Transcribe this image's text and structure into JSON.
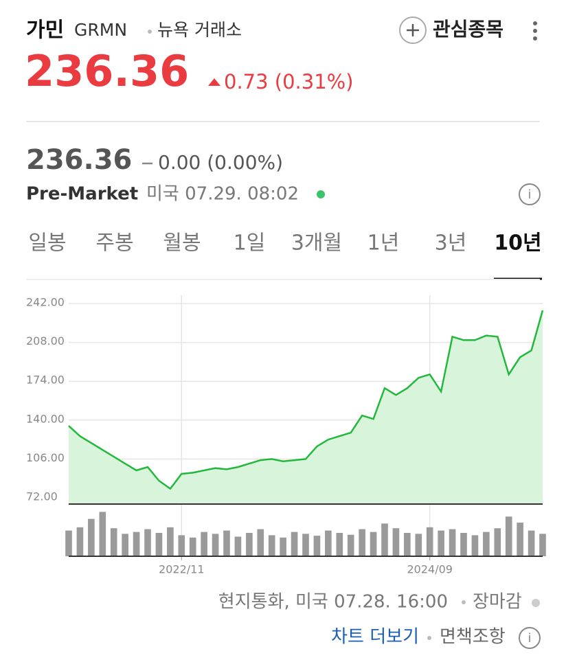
{
  "header": {
    "name": "가민",
    "ticker": "GRMN",
    "exchange": "뉴욕 거래소",
    "watchlist": "관심종목",
    "price": "236.36",
    "change": "0.73 (0.31%)"
  },
  "pre_market": {
    "price": "236.36",
    "change": "0.00 (0.00%)",
    "label": "Pre-Market",
    "time": "미국 07.29. 08:02"
  },
  "tabs": {
    "items": [
      "일봉",
      "주봉",
      "월봉",
      "1일",
      "3개월",
      "1년",
      "3년",
      "10년"
    ],
    "active": 7
  },
  "footer": {
    "note": "현지통화, 미국 07.28. 16:00",
    "status": "장마감",
    "more": "차트 더보기",
    "disclaimer": "면책조항"
  },
  "chart_data": {
    "type": "area",
    "x": [
      "2022/01",
      "2022/02",
      "2022/03",
      "2022/04",
      "2022/05",
      "2022/06",
      "2022/07",
      "2022/08",
      "2022/09",
      "2022/10",
      "2022/11",
      "2022/12",
      "2023/01",
      "2023/02",
      "2023/03",
      "2023/04",
      "2023/05",
      "2023/06",
      "2023/07",
      "2023/08",
      "2023/09",
      "2023/10",
      "2023/11",
      "2023/12",
      "2024/01",
      "2024/02",
      "2024/03",
      "2024/04",
      "2024/05",
      "2024/06",
      "2024/07",
      "2024/08",
      "2024/09",
      "2024/10",
      "2024/11",
      "2024/12",
      "2025/01",
      "2025/02",
      "2025/03",
      "2025/04",
      "2025/05",
      "2025/06",
      "2025/07"
    ],
    "series": [
      {
        "name": "GRMN",
        "color": "#22b83b",
        "fill": "#d8f5db",
        "values": [
          135,
          126,
          120,
          114,
          108,
          102,
          96,
          99,
          87,
          80,
          93,
          94,
          96,
          98,
          97,
          99,
          102,
          105,
          106,
          104,
          105,
          106,
          117,
          123,
          126,
          129,
          144,
          141,
          168,
          162,
          168,
          177,
          180,
          165,
          213,
          210,
          210,
          214,
          213,
          180,
          195,
          201,
          236
        ]
      }
    ],
    "volume": {
      "color": "#9a9a9a",
      "ylim": [
        0,
        100
      ],
      "values": [
        55,
        62,
        80,
        95,
        60,
        48,
        52,
        58,
        50,
        62,
        45,
        40,
        52,
        48,
        55,
        42,
        50,
        58,
        45,
        40,
        52,
        48,
        44,
        55,
        50,
        46,
        58,
        52,
        70,
        60,
        50,
        48,
        62,
        55,
        58,
        50,
        45,
        52,
        60,
        85,
        72,
        55,
        48
      ]
    },
    "ylim": [
      72,
      242
    ],
    "yticks": [
      {
        "value": 242,
        "label": "242.00"
      },
      {
        "value": 208,
        "label": "208.00"
      },
      {
        "value": 174,
        "label": "174.00"
      },
      {
        "value": 140,
        "label": "140.00"
      },
      {
        "value": 106,
        "label": "106.00"
      },
      {
        "value": 72,
        "label": "72.00"
      }
    ],
    "xticks": [
      "2022/11",
      "2024/09"
    ],
    "grid": true
  }
}
